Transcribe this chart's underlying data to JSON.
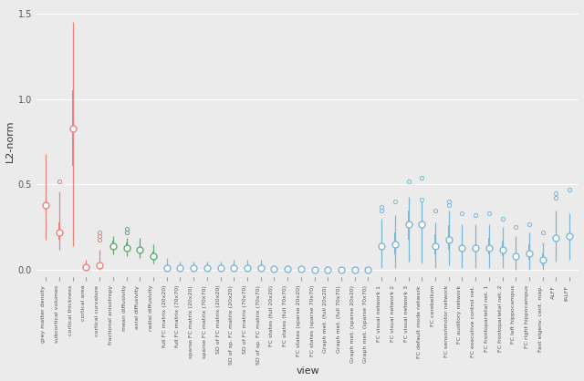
{
  "categories": [
    "grey matter density",
    "subcortical volumes",
    "cortical thickness",
    "cortical area",
    "cortical curvature",
    "fractional anisotropy",
    "mean diffusivity",
    "axial diffusivity",
    "radial diffusivity",
    "full FC matrix (20x20)",
    "full FC matrix (70x70)",
    "sparse FC matrix (20x20)",
    "sparse FC matrix (70x70)",
    "SD of FC matrix (20x20)",
    "SD of sp. FC matrix (20x20)",
    "SD of FC matrix (70x70)",
    "SD of sp. FC matrix (70x70)",
    "FC states (full 20x20)",
    "FC states (full 70x70)",
    "FC states (sparse 20x20)",
    "FC states (sparse 70x70)",
    "Graph met. (full 20x20)",
    "Graph met. (full 70x70)",
    "Graph met. (sparse 20x20)",
    "Graph met. (sparse 70x70)",
    "FC visual network 1",
    "FC visual network 2",
    "FC visual network 3",
    "FC default mode network",
    "FC cerebellum",
    "FC sensorimotor network",
    "FC auditory network",
    "FC executive control net.",
    "FC frontoparietal net. 1",
    "FC frontoparietal net. 2",
    "FC left hippocampus",
    "FC right hippocampus",
    "Fast eigenv. cent. map.",
    "ALFF",
    "fALFF"
  ],
  "colors": {
    "red": "#E8827F",
    "green": "#5BAD6F",
    "blue": "#7BB8D8"
  },
  "group_colors": [
    "red",
    "red",
    "red",
    "red",
    "red",
    "green",
    "green",
    "green",
    "green",
    "blue",
    "blue",
    "blue",
    "blue",
    "blue",
    "blue",
    "blue",
    "blue",
    "blue",
    "blue",
    "blue",
    "blue",
    "blue",
    "blue",
    "blue",
    "blue",
    "blue",
    "blue",
    "blue",
    "blue",
    "blue",
    "blue",
    "blue",
    "blue",
    "blue",
    "blue",
    "blue",
    "blue",
    "blue",
    "blue",
    "blue"
  ],
  "medians": [
    0.38,
    0.22,
    0.83,
    0.02,
    0.03,
    0.14,
    0.13,
    0.12,
    0.08,
    0.01,
    0.01,
    0.01,
    0.01,
    0.01,
    0.01,
    0.01,
    0.01,
    0.005,
    0.005,
    0.005,
    0.002,
    0.001,
    0.001,
    0.001,
    0.001,
    0.14,
    0.15,
    0.27,
    0.27,
    0.14,
    0.18,
    0.13,
    0.13,
    0.13,
    0.12,
    0.08,
    0.1,
    0.06,
    0.19,
    0.2
  ],
  "q1": [
    0.3,
    0.18,
    0.61,
    0.01,
    0.01,
    0.12,
    0.11,
    0.1,
    0.06,
    0.005,
    0.005,
    0.005,
    0.005,
    0.005,
    0.005,
    0.005,
    0.005,
    0.002,
    0.002,
    0.002,
    0.001,
    0.0,
    0.0,
    0.0,
    0.0,
    0.08,
    0.09,
    0.18,
    0.16,
    0.09,
    0.12,
    0.09,
    0.09,
    0.09,
    0.08,
    0.04,
    0.06,
    0.03,
    0.14,
    0.15
  ],
  "q3": [
    0.47,
    0.28,
    1.05,
    0.03,
    0.06,
    0.17,
    0.16,
    0.15,
    0.11,
    0.025,
    0.02,
    0.02,
    0.02,
    0.02,
    0.02,
    0.02,
    0.02,
    0.01,
    0.01,
    0.008,
    0.003,
    0.001,
    0.001,
    0.0,
    0.0,
    0.21,
    0.22,
    0.35,
    0.35,
    0.21,
    0.26,
    0.19,
    0.19,
    0.19,
    0.17,
    0.13,
    0.15,
    0.1,
    0.26,
    0.27
  ],
  "whisker_lo": [
    0.18,
    0.12,
    0.14,
    0.0,
    0.0,
    0.09,
    0.08,
    0.07,
    0.04,
    0.0,
    0.0,
    0.0,
    0.0,
    0.0,
    0.0,
    0.0,
    0.0,
    0.0,
    0.0,
    0.0,
    0.0,
    0.0,
    0.0,
    0.0,
    0.0,
    0.01,
    0.01,
    0.05,
    0.04,
    0.01,
    0.03,
    0.01,
    0.01,
    0.01,
    0.01,
    0.0,
    0.0,
    0.0,
    0.05,
    0.06
  ],
  "whisker_hi": [
    0.68,
    0.46,
    1.45,
    0.06,
    0.12,
    0.2,
    0.19,
    0.19,
    0.15,
    0.07,
    0.05,
    0.05,
    0.05,
    0.05,
    0.06,
    0.06,
    0.06,
    0.03,
    0.03,
    0.02,
    0.01,
    0.0,
    0.01,
    0.0,
    0.0,
    0.3,
    0.32,
    0.43,
    0.4,
    0.28,
    0.35,
    0.27,
    0.27,
    0.27,
    0.25,
    0.2,
    0.22,
    0.16,
    0.35,
    0.33
  ],
  "outliers_above": [
    [],
    [
      0.52
    ],
    [],
    [],
    [
      0.18,
      0.2,
      0.22
    ],
    [],
    [
      0.22,
      0.24
    ],
    [],
    [],
    [],
    [],
    [],
    [],
    [],
    [],
    [],
    [],
    [],
    [],
    [],
    [],
    [],
    [],
    [],
    [],
    [
      0.35,
      0.37
    ],
    [
      0.4
    ],
    [
      0.52
    ],
    [
      0.54,
      0.41
    ],
    [
      0.35
    ],
    [
      0.4,
      0.38
    ],
    [
      0.33
    ],
    [
      0.32
    ],
    [
      0.33
    ],
    [
      0.3
    ],
    [
      0.25
    ],
    [
      0.27
    ],
    [
      0.22
    ],
    [
      0.42,
      0.45
    ],
    [
      0.47
    ]
  ],
  "outliers_below": [
    [],
    [],
    [],
    [],
    [],
    [],
    [],
    [],
    [],
    [],
    [],
    [],
    [],
    [],
    [],
    [],
    [],
    [],
    [],
    [],
    [],
    [],
    [],
    [],
    [],
    [],
    [],
    [],
    [],
    [],
    [],
    [],
    [],
    [],
    [],
    [],
    [],
    [],
    [],
    []
  ],
  "ylabel": "L2-norm",
  "xlabel": "view",
  "ylim": [
    -0.04,
    1.55
  ],
  "yticks": [
    0.0,
    0.5,
    1.0,
    1.5
  ],
  "ytick_labels": [
    "0.0",
    "0.5",
    "1.0",
    "1.5"
  ],
  "bg_color": "#EBEBEB",
  "grid_color": "#FFFFFF",
  "box_width": 0.08,
  "line_width": 1.5,
  "median_size": 5,
  "outlier_size": 3
}
